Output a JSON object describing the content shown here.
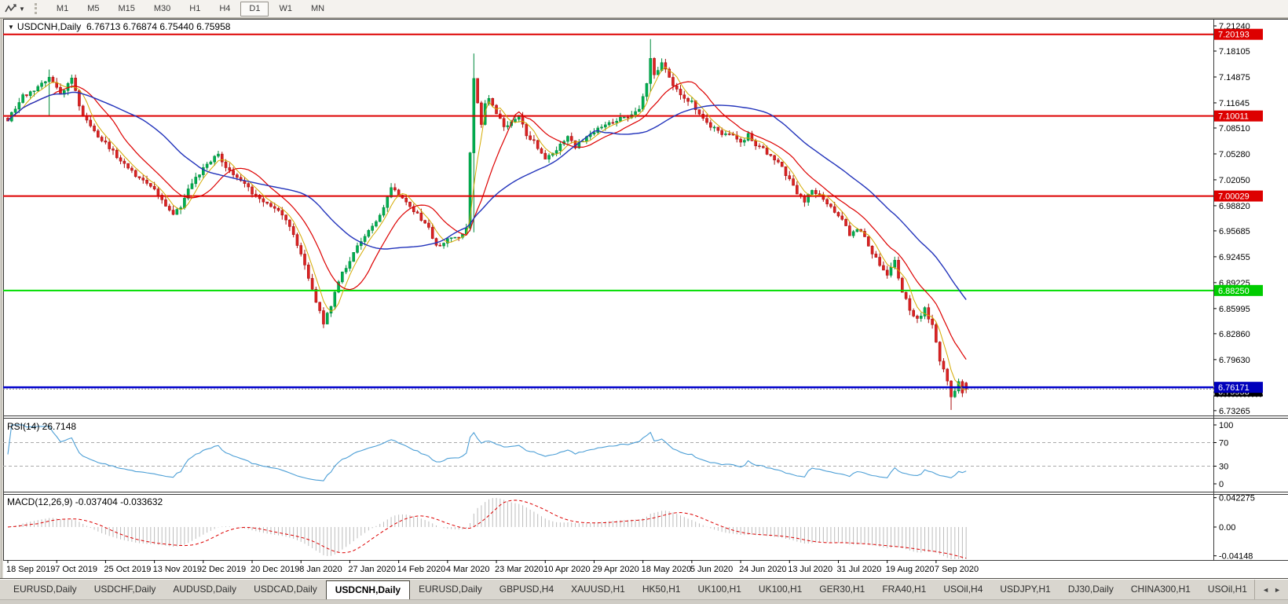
{
  "toolbar": {
    "timeframes": [
      "M1",
      "M5",
      "M15",
      "M30",
      "H1",
      "H4",
      "D1",
      "W1",
      "MN"
    ],
    "active_timeframe": "D1"
  },
  "chart_header": {
    "collapse_icon": "▼",
    "symbol_title": "USDCNH,Daily",
    "ohlc_readout": "6.76713 6.76874 6.75440 6.75958"
  },
  "panes": {
    "rsi_label": "RSI(14) 26.7148",
    "macd_label": "MACD(12,26,9) -0.037404 -0.033632"
  },
  "chart_data": {
    "type": "candlestick",
    "symbol": "USDCNH",
    "timeframe": "Daily",
    "n_candles": 256,
    "candle_up_color": "#00b050",
    "candle_up_stroke": "#008a3c",
    "candle_down_color": "#dd2222",
    "candle_down_stroke": "#aa1111",
    "price_axis_ticks": [
      "7.21240",
      "7.18105",
      "7.14875",
      "7.11645",
      "7.08510",
      "7.05280",
      "7.02050",
      "6.98820",
      "6.95685",
      "6.92455",
      "6.89225",
      "6.85995",
      "6.82860",
      "6.79630",
      "6.73265"
    ],
    "horizontal_lines": [
      {
        "price": 7.20193,
        "color": "#dd0000",
        "width": 2
      },
      {
        "price": 7.10011,
        "color": "#dd0000",
        "width": 2
      },
      {
        "price": 7.00029,
        "color": "#dd0000",
        "width": 2
      },
      {
        "price": 6.8825,
        "color": "#00dd00",
        "width": 2
      },
      {
        "price": 6.76171,
        "color": "#0000cc",
        "width": 2.5
      }
    ],
    "axis_badges": [
      {
        "value": "7.20193",
        "price": 7.20193,
        "bg": "#dd0000",
        "fg": "#ffffff",
        "dashed": false
      },
      {
        "value": "7.10011",
        "price": 7.10011,
        "bg": "#dd0000",
        "fg": "#ffffff",
        "dashed": false
      },
      {
        "value": "7.00029",
        "price": 7.00029,
        "bg": "#dd0000",
        "fg": "#ffffff",
        "dashed": false
      },
      {
        "value": "6.88250",
        "price": 6.8825,
        "bg": "#00cc00",
        "fg": "#ffffff",
        "dashed": false
      },
      {
        "value": "6.75958",
        "price": 6.75958,
        "bg": "#000000",
        "fg": "#ffffff",
        "dashed": true
      },
      {
        "value": "6.76171",
        "price": 6.76171,
        "bg": "#0000bb",
        "fg": "#ffffff",
        "dashed": false
      }
    ],
    "current_price": 6.75958,
    "last_candle": {
      "o": 6.76713,
      "h": 6.76874,
      "l": 6.7544,
      "c": 6.75958
    },
    "keyframes": [
      [
        0,
        7.095
      ],
      [
        4,
        7.125
      ],
      [
        8,
        7.135
      ],
      [
        11,
        7.15
      ],
      [
        14,
        7.125
      ],
      [
        17,
        7.145
      ],
      [
        20,
        7.1
      ],
      [
        23,
        7.08
      ],
      [
        26,
        7.065
      ],
      [
        30,
        7.045
      ],
      [
        33,
        7.03
      ],
      [
        36,
        7.02
      ],
      [
        39,
        7.01
      ],
      [
        42,
        6.99
      ],
      [
        44,
        6.978
      ],
      [
        46,
        6.988
      ],
      [
        48,
        7.008
      ],
      [
        52,
        7.035
      ],
      [
        56,
        7.052
      ],
      [
        59,
        7.03
      ],
      [
        62,
        7.018
      ],
      [
        65,
        7.005
      ],
      [
        69,
        6.992
      ],
      [
        73,
        6.978
      ],
      [
        76,
        6.952
      ],
      [
        78,
        6.928
      ],
      [
        81,
        6.883
      ],
      [
        84,
        6.843
      ],
      [
        86,
        6.862
      ],
      [
        88,
        6.895
      ],
      [
        91,
        6.921
      ],
      [
        94,
        6.945
      ],
      [
        97,
        6.963
      ],
      [
        100,
        6.985
      ],
      [
        102,
        7.012
      ],
      [
        104,
        7.002
      ],
      [
        107,
        6.988
      ],
      [
        110,
        6.972
      ],
      [
        112,
        6.962
      ],
      [
        114,
        6.937
      ],
      [
        116,
        6.944
      ],
      [
        119,
        6.948
      ],
      [
        121,
        6.952
      ],
      [
        122,
        6.962
      ],
      [
        124,
        7.148
      ],
      [
        125,
        7.118
      ],
      [
        126,
        7.092
      ],
      [
        127,
        7.118
      ],
      [
        128,
        7.122
      ],
      [
        130,
        7.105
      ],
      [
        132,
        7.088
      ],
      [
        134,
        7.092
      ],
      [
        136,
        7.1
      ],
      [
        138,
        7.075
      ],
      [
        140,
        7.068
      ],
      [
        143,
        7.046
      ],
      [
        145,
        7.052
      ],
      [
        147,
        7.066
      ],
      [
        149,
        7.074
      ],
      [
        151,
        7.062
      ],
      [
        153,
        7.07
      ],
      [
        156,
        7.08
      ],
      [
        159,
        7.088
      ],
      [
        162,
        7.094
      ],
      [
        165,
        7.1
      ],
      [
        168,
        7.108
      ],
      [
        170,
        7.14
      ],
      [
        171,
        7.172
      ],
      [
        172,
        7.152
      ],
      [
        174,
        7.166
      ],
      [
        176,
        7.148
      ],
      [
        178,
        7.132
      ],
      [
        180,
        7.122
      ],
      [
        182,
        7.118
      ],
      [
        184,
        7.102
      ],
      [
        186,
        7.092
      ],
      [
        188,
        7.084
      ],
      [
        190,
        7.076
      ],
      [
        192,
        7.08
      ],
      [
        195,
        7.066
      ],
      [
        197,
        7.076
      ],
      [
        199,
        7.064
      ],
      [
        201,
        7.058
      ],
      [
        203,
        7.05
      ],
      [
        205,
        7.042
      ],
      [
        208,
        7.02
      ],
      [
        210,
        7.004
      ],
      [
        212,
        6.994
      ],
      [
        214,
        7.008
      ],
      [
        216,
        7.002
      ],
      [
        218,
        6.992
      ],
      [
        220,
        6.98
      ],
      [
        222,
        6.972
      ],
      [
        224,
        6.952
      ],
      [
        226,
        6.96
      ],
      [
        228,
        6.948
      ],
      [
        230,
        6.928
      ],
      [
        232,
        6.915
      ],
      [
        234,
        6.902
      ],
      [
        236,
        6.918
      ],
      [
        238,
        6.882
      ],
      [
        240,
        6.858
      ],
      [
        242,
        6.846
      ],
      [
        244,
        6.859
      ],
      [
        246,
        6.838
      ],
      [
        248,
        6.795
      ],
      [
        250,
        6.772
      ],
      [
        251,
        6.748
      ],
      [
        252,
        6.757
      ],
      [
        253,
        6.768
      ],
      [
        254,
        6.757
      ],
      [
        255,
        6.75958
      ]
    ],
    "wick_overrides": [
      [
        124,
        7.178,
        6.955
      ],
      [
        171,
        7.196,
        7.13
      ],
      [
        251,
        6.76,
        6.7335
      ],
      [
        11,
        7.158,
        7.1
      ],
      [
        84,
        6.852,
        6.837
      ]
    ],
    "noise": 0.005,
    "wick": 0.006,
    "moving_averages": [
      {
        "period": 5,
        "color": "#d4aa00",
        "width": 1
      },
      {
        "period": 13,
        "color": "#dd0000",
        "width": 1.2
      },
      {
        "period": 34,
        "color": "#2233bb",
        "width": 1.4
      }
    ],
    "rsi": {
      "period": 14,
      "value": "26.7148",
      "levels": [
        70,
        30
      ],
      "scale_labels": [
        "100",
        "70",
        "30",
        "0"
      ],
      "color": "#4d9fd6"
    },
    "macd": {
      "fast": 12,
      "slow": 26,
      "signal": 9,
      "values": "-0.037404 -0.033632",
      "scale_labels": [
        "0.042275",
        "0.00",
        "-0.04148"
      ],
      "bar_color": "#bcbcbc",
      "signal_color": "#dd0000"
    },
    "date_labels": [
      "18 Sep 2019",
      "7 Oct 2019",
      "25 Oct 2019",
      "13 Nov 2019",
      "2 Dec 2019",
      "20 Dec 2019",
      "8 Jan 2020",
      "27 Jan 2020",
      "14 Feb 2020",
      "4 Mar 2020",
      "23 Mar 2020",
      "10 Apr 2020",
      "29 Apr 2020",
      "18 May 2020",
      "5 Jun 2020",
      "24 Jun 2020",
      "13 Jul 2020",
      "31 Jul 2020",
      "19 Aug 2020",
      "7 Sep 2020"
    ]
  },
  "tabbar": {
    "tabs": [
      {
        "label": "EURUSD,Daily"
      },
      {
        "label": "USDCHF,Daily"
      },
      {
        "label": "AUDUSD,Daily"
      },
      {
        "label": "USDCAD,Daily"
      },
      {
        "label": "USDCNH,Daily"
      },
      {
        "label": "EURUSD,Daily"
      },
      {
        "label": "GBPUSD,H4"
      },
      {
        "label": "XAUUSD,H1"
      },
      {
        "label": "HK50,H1"
      },
      {
        "label": "UK100,H1"
      },
      {
        "label": "UK100,H1"
      },
      {
        "label": "GER30,H1"
      },
      {
        "label": "FRA40,H1"
      },
      {
        "label": "USOil,H4"
      },
      {
        "label": "USDJPY,H1"
      },
      {
        "label": "DJ30,Daily"
      },
      {
        "label": "CHINA300,H1"
      },
      {
        "label": "USOil,H1"
      }
    ],
    "active_index": 4,
    "left_scroll_icon": "◄",
    "right_scroll_icon": "►"
  }
}
